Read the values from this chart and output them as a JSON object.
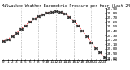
{
  "title": "Milwaukee Weather Barometric Pressure per Hour (Last 24 Hours)",
  "x_hours": [
    0,
    1,
    2,
    3,
    4,
    5,
    6,
    7,
    8,
    9,
    10,
    11,
    12,
    13,
    14,
    15,
    16,
    17,
    18,
    19,
    20,
    21,
    22,
    23
  ],
  "pressure": [
    29.18,
    29.22,
    29.28,
    29.35,
    29.45,
    29.52,
    29.6,
    29.67,
    29.73,
    29.77,
    29.8,
    29.82,
    29.83,
    29.82,
    29.78,
    29.72,
    29.63,
    29.52,
    29.4,
    29.28,
    29.14,
    29.02,
    28.92,
    28.82
  ],
  "line_color": "#ff0000",
  "marker_color": "#333333",
  "bg_color": "#ffffff",
  "grid_color": "#999999",
  "ylim_min": 28.75,
  "ylim_max": 29.9,
  "ytick_values": [
    28.75,
    28.8,
    28.9,
    29.0,
    29.1,
    29.2,
    29.3,
    29.4,
    29.5,
    29.6,
    29.7,
    29.8,
    29.9
  ],
  "vgrid_positions": [
    4,
    8,
    12,
    16,
    20
  ],
  "tick_label_fontsize": 3.2,
  "title_fontsize": 3.5
}
